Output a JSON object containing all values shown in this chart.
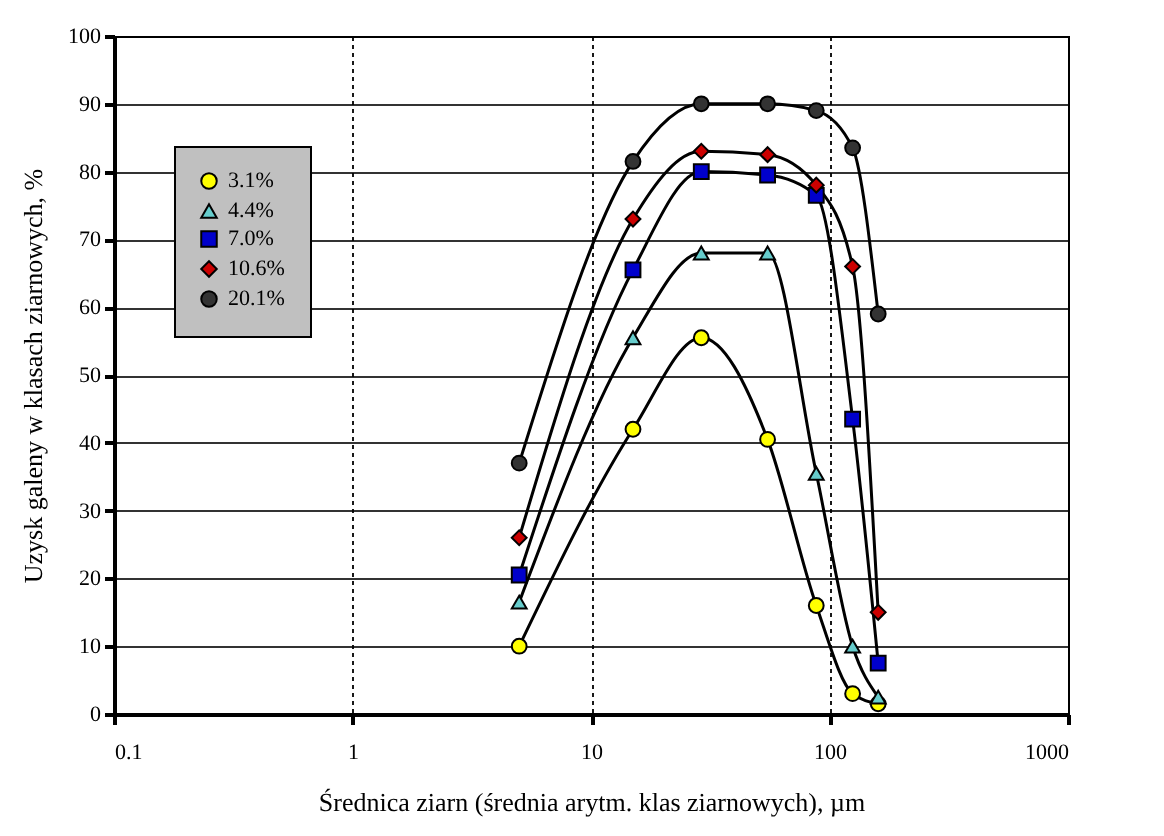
{
  "chart_data": {
    "type": "line",
    "xlabel": "Średnica ziarn (średnia arytm. klas ziarnowych),  µm",
    "ylabel": "Uzysk galeny w klasach ziarnowych, %",
    "x": [
      5,
      15,
      29,
      55,
      88,
      125,
      160
    ],
    "series": [
      {
        "name": "3.1%",
        "color": "#ffff00",
        "marker": "circle",
        "values": [
          10,
          42,
          55.5,
          40.5,
          16,
          3,
          1.5
        ]
      },
      {
        "name": "4.4%",
        "color": "#66cccc",
        "marker": "triangle",
        "values": [
          16.5,
          55.5,
          68,
          68,
          35.5,
          10,
          2.5
        ]
      },
      {
        "name": "7.0%",
        "color": "#0000cc",
        "marker": "square",
        "values": [
          20.5,
          65.5,
          80,
          79.5,
          76.5,
          43.5,
          7.5
        ]
      },
      {
        "name": "10.6%",
        "color": "#cc0000",
        "marker": "diamond",
        "values": [
          26,
          73,
          83,
          82.5,
          78,
          66,
          15
        ]
      },
      {
        "name": "20.1%",
        "color": "#333333",
        "marker": "circle",
        "values": [
          37,
          81.5,
          90,
          90,
          89,
          83.5,
          59
        ]
      }
    ],
    "log": "x",
    "xlim": [
      0.1,
      1000
    ],
    "xticks": [
      0.1,
      1,
      10,
      100,
      1000
    ],
    "ylim": [
      0,
      100
    ],
    "yticks": [
      0,
      10,
      20,
      30,
      40,
      50,
      60,
      70,
      80,
      90,
      100
    ],
    "grid": true,
    "legend": "top left"
  }
}
